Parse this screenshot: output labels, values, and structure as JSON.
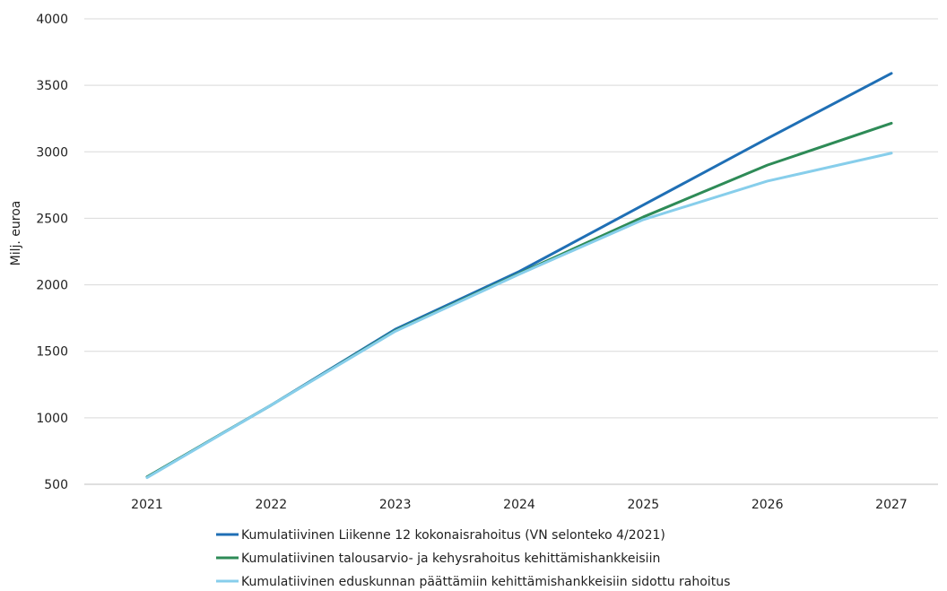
{
  "chart_data": {
    "type": "line",
    "title": "",
    "xlabel": "",
    "ylabel": "Milj. euroa",
    "ylim": [
      500,
      4000
    ],
    "yticks": [
      "500",
      "1000",
      "1500",
      "2000",
      "2500",
      "3000",
      "3500",
      "4000"
    ],
    "categories": [
      "2021",
      "2022",
      "2023",
      "2024",
      "2025",
      "2026",
      "2027"
    ],
    "grid": true,
    "legend_position": "bottom",
    "series": [
      {
        "name": "Kumulatiivinen Liikenne 12 kokonaisrahoitus (VN selonteko 4/2021)",
        "color": "#1f6fb5",
        "values": [
          555,
          1095,
          1665,
          2100,
          2600,
          3100,
          3590
        ]
      },
      {
        "name": "Kumulatiivinen talousarvio- ja kehysrahoitus kehittämishankkeisiin",
        "color": "#2e8b57",
        "values": [
          555,
          1095,
          1655,
          2085,
          2510,
          2900,
          3215
        ]
      },
      {
        "name": "Kumulatiivinen eduskunnan päättämiin kehittämishankkeisiin sidottu rahoitus",
        "color": "#87ceeb",
        "values": [
          550,
          1095,
          1650,
          2080,
          2490,
          2780,
          2990
        ]
      }
    ]
  }
}
